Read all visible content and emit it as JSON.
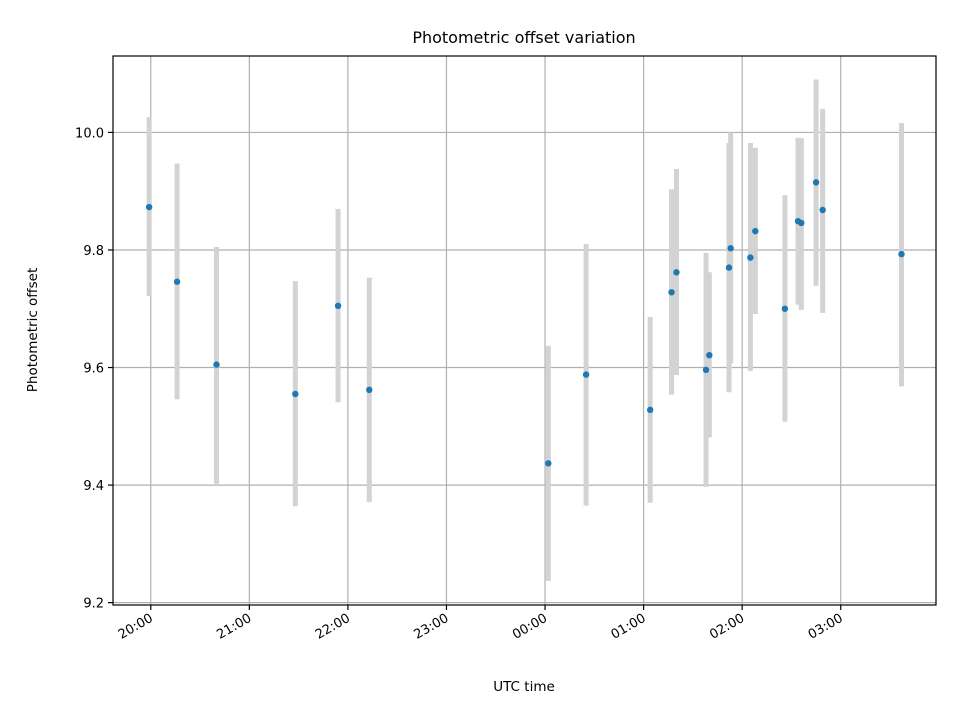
{
  "chart_data": {
    "type": "scatter",
    "title": "Photometric offset variation",
    "xlabel": "UTC time",
    "ylabel": "Photometric offset",
    "x_axis_kind": "time",
    "x_reference_date": "2000-01-01",
    "xlim": [
      "2000-01-01T19:37",
      "2000-01-02T03:58"
    ],
    "ylim": [
      9.196,
      10.13
    ],
    "grid": true,
    "x_ticks": [
      {
        "value": "2000-01-01T20:00",
        "label": "20:00"
      },
      {
        "value": "2000-01-01T21:00",
        "label": "21:00"
      },
      {
        "value": "2000-01-01T22:00",
        "label": "22:00"
      },
      {
        "value": "2000-01-01T23:00",
        "label": "23:00"
      },
      {
        "value": "2000-01-02T00:00",
        "label": "00:00"
      },
      {
        "value": "2000-01-02T01:00",
        "label": "01:00"
      },
      {
        "value": "2000-01-02T02:00",
        "label": "02:00"
      },
      {
        "value": "2000-01-02T03:00",
        "label": "03:00"
      }
    ],
    "y_ticks": [
      {
        "value": 9.2,
        "label": "9.2"
      },
      {
        "value": 9.4,
        "label": "9.4"
      },
      {
        "value": 9.6,
        "label": "9.6"
      },
      {
        "value": 9.8,
        "label": "9.8"
      },
      {
        "value": 10.0,
        "label": "10.0"
      }
    ],
    "colors": {
      "marker": "#1f77b4",
      "errorbar": "#d3d3d3",
      "grid": "#b0b0b0"
    },
    "points": [
      {
        "x": "2000-01-01T19:59",
        "y": 9.873,
        "ylo": 9.722,
        "yhi": 10.026
      },
      {
        "x": "2000-01-01T20:16",
        "y": 9.746,
        "ylo": 9.546,
        "yhi": 9.947
      },
      {
        "x": "2000-01-01T20:40",
        "y": 9.605,
        "ylo": 9.402,
        "yhi": 9.805
      },
      {
        "x": "2000-01-01T21:28",
        "y": 9.555,
        "ylo": 9.364,
        "yhi": 9.747
      },
      {
        "x": "2000-01-01T21:54",
        "y": 9.705,
        "ylo": 9.541,
        "yhi": 9.87
      },
      {
        "x": "2000-01-01T22:13",
        "y": 9.562,
        "ylo": 9.371,
        "yhi": 9.753
      },
      {
        "x": "2000-01-02T00:02",
        "y": 9.437,
        "ylo": 9.237,
        "yhi": 9.637
      },
      {
        "x": "2000-01-02T00:25",
        "y": 9.588,
        "ylo": 9.365,
        "yhi": 9.81
      },
      {
        "x": "2000-01-02T01:04",
        "y": 9.528,
        "ylo": 9.37,
        "yhi": 9.686
      },
      {
        "x": "2000-01-02T01:17",
        "y": 9.728,
        "ylo": 9.554,
        "yhi": 9.903
      },
      {
        "x": "2000-01-02T01:20",
        "y": 9.762,
        "ylo": 9.587,
        "yhi": 9.938
      },
      {
        "x": "2000-01-02T01:38",
        "y": 9.596,
        "ylo": 9.397,
        "yhi": 9.795
      },
      {
        "x": "2000-01-02T01:40",
        "y": 9.621,
        "ylo": 9.481,
        "yhi": 9.762
      },
      {
        "x": "2000-01-02T01:52",
        "y": 9.77,
        "ylo": 9.558,
        "yhi": 9.982
      },
      {
        "x": "2000-01-02T01:53",
        "y": 9.803,
        "ylo": 9.607,
        "yhi": 10.0
      },
      {
        "x": "2000-01-02T02:05",
        "y": 9.787,
        "ylo": 9.594,
        "yhi": 9.982
      },
      {
        "x": "2000-01-02T02:08",
        "y": 9.832,
        "ylo": 9.691,
        "yhi": 9.974
      },
      {
        "x": "2000-01-02T02:26",
        "y": 9.7,
        "ylo": 9.508,
        "yhi": 9.893
      },
      {
        "x": "2000-01-02T02:34",
        "y": 9.849,
        "ylo": 9.707,
        "yhi": 9.991
      },
      {
        "x": "2000-01-02T02:36",
        "y": 9.846,
        "ylo": 9.698,
        "yhi": 9.99
      },
      {
        "x": "2000-01-02T02:45",
        "y": 9.915,
        "ylo": 9.739,
        "yhi": 10.09
      },
      {
        "x": "2000-01-02T02:49",
        "y": 9.868,
        "ylo": 9.693,
        "yhi": 10.04
      },
      {
        "x": "2000-01-02T03:37",
        "y": 9.793,
        "ylo": 9.568,
        "yhi": 10.016
      }
    ]
  }
}
